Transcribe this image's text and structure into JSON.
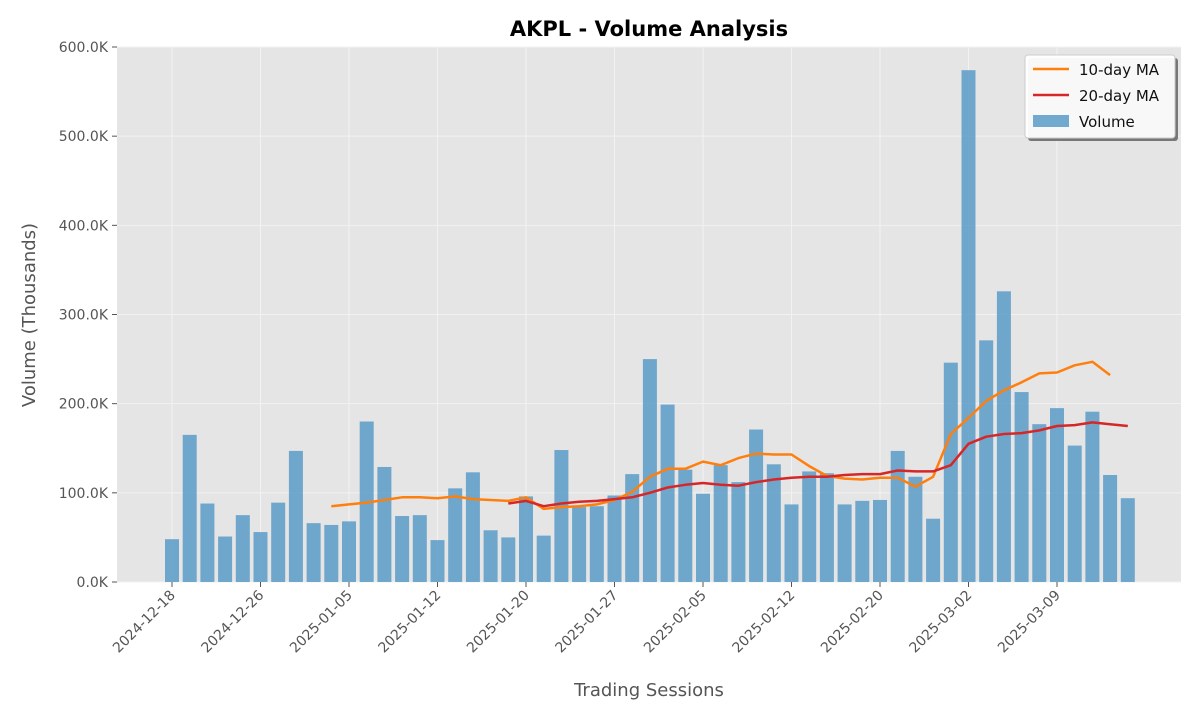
{
  "chart_data": {
    "type": "bar",
    "title": "AKPL - Volume Analysis",
    "xlabel": "Trading Sessions",
    "ylabel": "Volume (Thousands)",
    "ylim": [
      0,
      600000
    ],
    "y_ticks": [
      0,
      100000,
      200000,
      300000,
      400000,
      500000,
      600000
    ],
    "y_tick_labels": [
      "0.0K",
      "100.0K",
      "200.0K",
      "300.0K",
      "400.0K",
      "500.0K",
      "600.0K"
    ],
    "x_tick_labels": [
      "2024-12-18",
      "2024-12-26",
      "2025-01-05",
      "2025-01-12",
      "2025-01-20",
      "2025-01-27",
      "2025-02-05",
      "2025-02-12",
      "2025-02-20",
      "2025-03-02",
      "2025-03-09"
    ],
    "x_tick_positions": [
      0,
      5,
      10,
      15,
      20,
      25,
      30,
      35,
      40,
      45,
      50
    ],
    "grid": true,
    "legend_position": "top-right",
    "colors": {
      "volume": "#5b9bc8",
      "ma10": "#ff7f0e",
      "ma20": "#d62728",
      "plot_bg": "#e5e5e5",
      "grid": "#f2f2f2"
    },
    "series": [
      {
        "name": "Volume",
        "kind": "bar",
        "values": [
          48000,
          165000,
          88000,
          51000,
          75000,
          56000,
          89000,
          147000,
          66000,
          64000,
          68000,
          180000,
          129000,
          74000,
          75000,
          47000,
          105000,
          123000,
          58000,
          50000,
          96000,
          52000,
          148000,
          84000,
          85000,
          97000,
          121000,
          250000,
          199000,
          126000,
          99000,
          131000,
          112000,
          171000,
          132000,
          87000,
          124000,
          122000,
          87000,
          91000,
          92000,
          147000,
          118000,
          71000,
          246000,
          574000,
          271000,
          326000,
          213000,
          177000,
          195000,
          153000,
          191000,
          120000,
          94000
        ]
      },
      {
        "name": "10-day MA",
        "kind": "line",
        "start_index": 9,
        "values": [
          85000,
          87000,
          89000,
          92000,
          95000,
          95000,
          94000,
          96000,
          93000,
          92000,
          91000,
          95000,
          82000,
          84000,
          85000,
          87000,
          92000,
          101000,
          118000,
          127000,
          127000,
          135000,
          131000,
          139000,
          144000,
          143000,
          143000,
          130000,
          119000,
          116000,
          115000,
          117000,
          117000,
          107000,
          118000,
          166000,
          184000,
          203000,
          215000,
          224000,
          234000,
          235000,
          243000,
          247000,
          232000
        ]
      },
      {
        "name": "20-day MA",
        "kind": "line",
        "start_index": 19,
        "values": [
          88000,
          91000,
          85000,
          88000,
          90000,
          91000,
          93000,
          95000,
          100000,
          106000,
          109000,
          111000,
          109000,
          108000,
          112000,
          115000,
          117000,
          118000,
          118000,
          120000,
          121000,
          121000,
          125000,
          124000,
          124000,
          131000,
          155000,
          163000,
          166000,
          167000,
          170000,
          175000,
          176000,
          179000,
          177000,
          175000
        ]
      }
    ]
  }
}
